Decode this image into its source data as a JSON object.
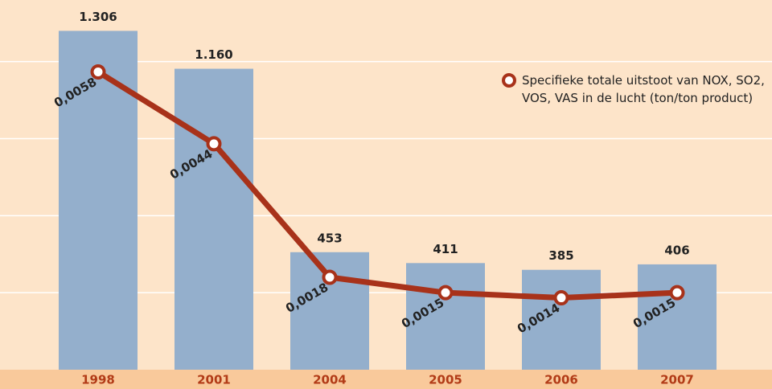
{
  "chart_data": {
    "type": "bar_line",
    "categories": [
      "1998",
      "2001",
      "2004",
      "2005",
      "2006",
      "2007"
    ],
    "series": [
      {
        "type": "bar",
        "color": "#94afcc",
        "values": [
          1306,
          1160,
          453,
          411,
          385,
          406
        ],
        "value_labels": [
          "1.306",
          "1.160",
          "453",
          "411",
          "385",
          "406"
        ]
      },
      {
        "type": "line",
        "axis": "y2",
        "name": "Specifieke totale uitstoot van NOX, SO2, VOS, VAS in de lucht (ton/ton product)",
        "color": "#a8321a",
        "values": [
          0.0058,
          0.0044,
          0.0018,
          0.0015,
          0.0014,
          0.0015
        ],
        "value_labels": [
          "0,0058",
          "0,0044",
          "0,0018",
          "0,0015",
          "0,0014",
          "0,0015"
        ]
      }
    ],
    "ylim": [
      0,
      1425
    ],
    "y2lim": [
      0,
      0.0072
    ],
    "y2ticks": [
      0,
      0.0015,
      0.003,
      0.0045,
      0.006
    ],
    "grid": true
  }
}
